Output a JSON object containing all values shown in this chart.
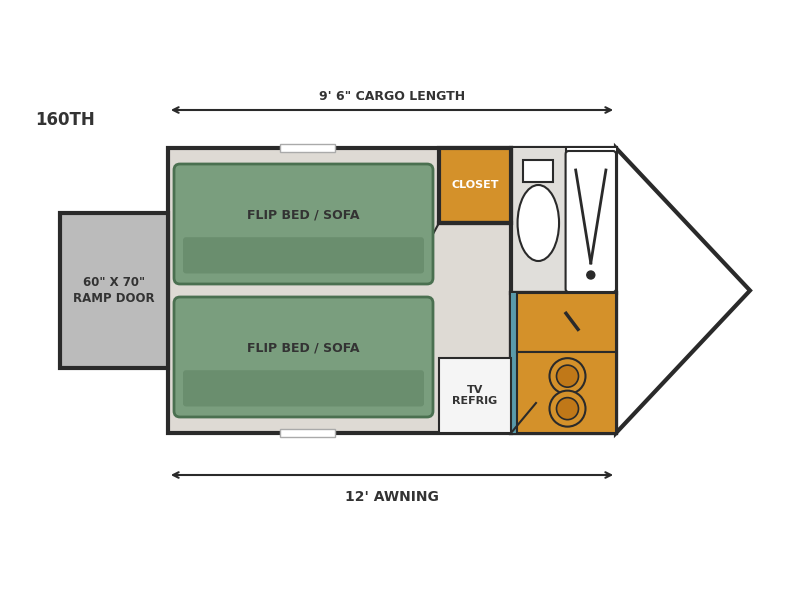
{
  "bg_color": "#ffffff",
  "wall_color": "#2a2a2a",
  "floor_color": "#dedad4",
  "ramp_color": "#bbbbbb",
  "bed_fill": "#7a9e7e",
  "bed_stroke": "#4a7050",
  "closet_fill": "#d4912a",
  "counter_fill": "#d4912a",
  "teal_color": "#5a9aaa",
  "tv_fill": "#f5f5f5",
  "arrow_color": "#2a2a2a",
  "model_label": "160TH",
  "cargo_label": "9' 6\" CARGO LENGTH",
  "awning_label": "12' AWNING",
  "ramp_label": "60\" X 70\"\nRAMP DOOR",
  "closet_label": "CLOSET",
  "bed1_label": "FLIP BED / SOFA",
  "bed2_label": "FLIP BED / SOFA",
  "tv_label": "TV\nREFRIG"
}
